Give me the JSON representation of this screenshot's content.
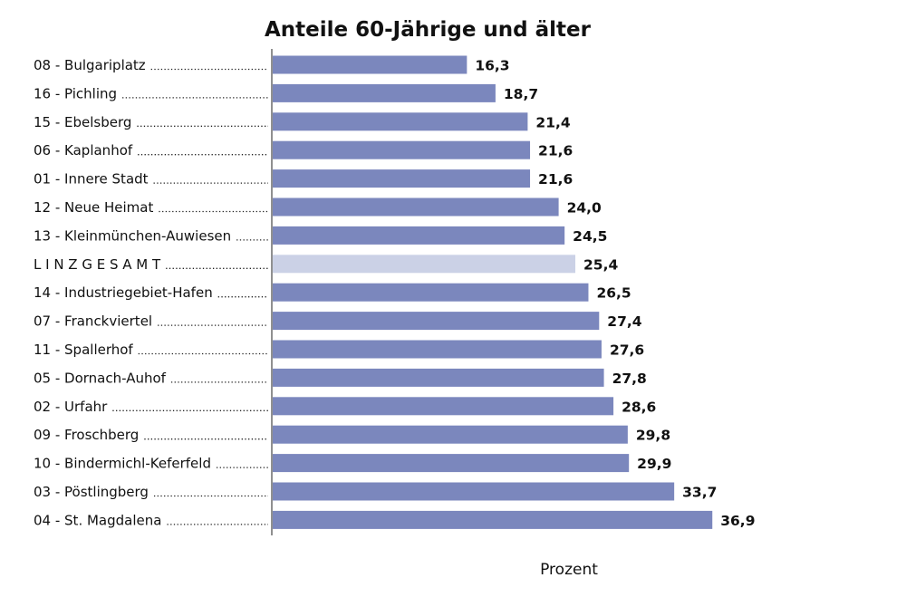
{
  "chart_data": {
    "type": "bar",
    "orientation": "horizontal",
    "title": "Anteile 60-Jährige und älter",
    "xlabel": "Prozent",
    "ylabel": "",
    "xlim": [
      0,
      40
    ],
    "grid": false,
    "categories": [
      "08 - Bulgariplatz",
      "16 - Pichling",
      "15 - Ebelsberg",
      "06 - Kaplanhof",
      "01 - Innere Stadt",
      "12 - Neue Heimat",
      "13 - Kleinmünchen-Auwiesen",
      "L I N Z   G E S A M T",
      "14 - Industriegebiet-Hafen",
      "07 - Franckviertel",
      "11 - Spallerhof",
      "05 - Dornach-Auhof",
      "02 - Urfahr",
      "09 - Froschberg",
      "10 - Bindermichl-Keferfeld",
      "03 - Pöstlingberg",
      "04 - St. Magdalena"
    ],
    "values": [
      16.3,
      18.7,
      21.4,
      21.6,
      21.6,
      24.0,
      24.5,
      25.4,
      26.5,
      27.4,
      27.6,
      27.8,
      28.6,
      29.8,
      29.9,
      33.7,
      36.9
    ],
    "value_labels": [
      "16,3",
      "18,7",
      "21,4",
      "21,6",
      "21,6",
      "24,0",
      "24,5",
      "25,4",
      "26,5",
      "27,4",
      "27,6",
      "27,8",
      "28,6",
      "29,8",
      "29,9",
      "33,7",
      "36,9"
    ],
    "highlight_index": 7,
    "colors": {
      "bar": "#7b87bd",
      "highlight": "#cbd1e6",
      "axis": "#222222",
      "text": "#111111"
    }
  }
}
